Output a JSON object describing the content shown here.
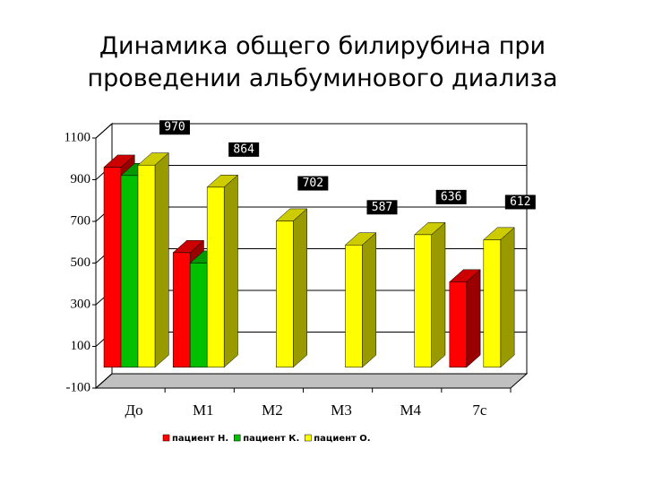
{
  "chart_data": {
    "type": "bar3d",
    "title": "Динамика общего билирубина при проведении альбуминового диализа",
    "categories": [
      "До",
      "М1",
      "М2",
      "М3",
      "М4",
      "7с"
    ],
    "series": [
      {
        "name": "пациент Н.",
        "color": "#ff0000",
        "values": [
          960,
          550,
          null,
          null,
          null,
          410
        ]
      },
      {
        "name": "пациент К.",
        "color": "#00c000",
        "values": [
          920,
          500,
          null,
          null,
          null,
          null
        ]
      },
      {
        "name": "пациент О.",
        "color": "#ffff00",
        "values": [
          970,
          864,
          702,
          587,
          636,
          612
        ],
        "show_labels": true
      }
    ],
    "ylim": [
      -100,
      1100
    ],
    "yticks": [
      -100,
      100,
      300,
      500,
      700,
      900,
      1100
    ],
    "grid": true,
    "legend": "bottom"
  }
}
